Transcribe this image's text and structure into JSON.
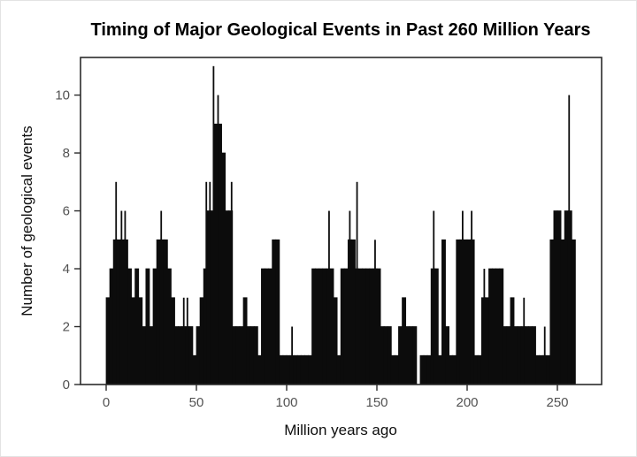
{
  "figure": {
    "background_color": "#ffffff",
    "border_color": "#e3e3e3"
  },
  "chart_data": {
    "type": "bar",
    "subtype": "histogram",
    "title": "Timing of Major Geological Events in Past 260 Million Years",
    "xlabel": "Million years ago",
    "ylabel": "Number of geological events",
    "x_ticks": [
      0,
      50,
      100,
      150,
      200,
      250
    ],
    "y_ticks": [
      0,
      2,
      4,
      6,
      8,
      10
    ],
    "xlim": [
      -14,
      275
    ],
    "ylim": [
      0,
      11.3
    ],
    "grid": false,
    "legend": null,
    "bar_color": "#0c0c0c",
    "axis_color": "#2b2b2b",
    "tick_label_color": "#525252",
    "bin_start": 0,
    "bin_width": 2,
    "values": [
      3,
      4,
      5,
      5,
      5,
      5,
      4,
      3,
      4,
      3,
      2,
      4,
      2,
      4,
      5,
      5,
      5,
      4,
      3,
      2,
      2,
      2,
      2,
      2,
      1,
      2,
      3,
      4,
      6,
      6,
      9,
      9,
      8,
      6,
      6,
      2,
      2,
      2,
      3,
      2,
      2,
      2,
      1,
      4,
      4,
      4,
      5,
      5,
      1,
      1,
      1,
      1,
      1,
      1,
      1,
      1,
      1,
      4,
      4,
      4,
      4,
      4,
      4,
      3,
      1,
      4,
      4,
      5,
      5,
      4,
      4,
      4,
      4,
      4,
      4,
      4,
      2,
      2,
      2,
      1,
      1,
      2,
      3,
      2,
      2,
      2,
      0,
      1,
      1,
      1,
      4,
      4,
      1,
      5,
      2,
      1,
      1,
      5,
      5,
      5,
      5,
      5,
      1,
      1,
      3,
      3,
      4,
      4,
      4,
      4,
      2,
      2,
      3,
      2,
      2,
      2,
      2,
      2,
      2,
      1,
      1,
      1,
      1,
      5,
      6,
      6,
      5,
      6,
      6,
      5
    ],
    "spikes": [
      {
        "x": 5.5,
        "base": 5,
        "top": 7
      },
      {
        "x": 8.5,
        "base": 5,
        "top": 6
      },
      {
        "x": 10.5,
        "base": 5,
        "top": 6
      },
      {
        "x": 30.5,
        "base": 5,
        "top": 6
      },
      {
        "x": 43,
        "base": 2,
        "top": 3
      },
      {
        "x": 45,
        "base": 2,
        "top": 3
      },
      {
        "x": 55.5,
        "base": 4,
        "top": 7
      },
      {
        "x": 57.5,
        "base": 6,
        "top": 7
      },
      {
        "x": 59.5,
        "base": 6,
        "top": 11
      },
      {
        "x": 62,
        "base": 9,
        "top": 10
      },
      {
        "x": 69.5,
        "base": 6,
        "top": 7
      },
      {
        "x": 103,
        "base": 1,
        "top": 2
      },
      {
        "x": 123.5,
        "base": 4,
        "top": 6
      },
      {
        "x": 135,
        "base": 5,
        "top": 6
      },
      {
        "x": 139,
        "base": 4,
        "top": 7
      },
      {
        "x": 149,
        "base": 4,
        "top": 5
      },
      {
        "x": 181.5,
        "base": 4,
        "top": 6
      },
      {
        "x": 197.5,
        "base": 5,
        "top": 6
      },
      {
        "x": 202.5,
        "base": 5,
        "top": 6
      },
      {
        "x": 209.5,
        "base": 3,
        "top": 4
      },
      {
        "x": 231.5,
        "base": 2,
        "top": 3
      },
      {
        "x": 243,
        "base": 1,
        "top": 2
      },
      {
        "x": 256.5,
        "base": 6,
        "top": 10
      }
    ]
  }
}
